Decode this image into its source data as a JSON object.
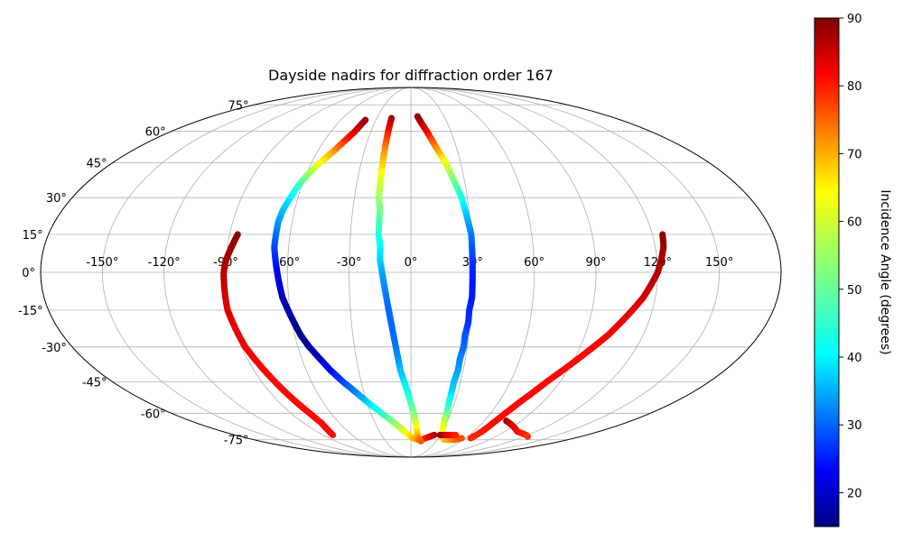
{
  "chart_data": {
    "type": "scatter",
    "projection": "mollweide",
    "title": "Dayside nadirs for diffraction order 167",
    "grid": true,
    "x_ticks": [
      "-150°",
      "-120°",
      "-90°",
      "-60°",
      "-30°",
      "0°",
      "30°",
      "60°",
      "90°",
      "120°",
      "150°"
    ],
    "y_ticks": [
      "75°",
      "60°",
      "45°",
      "30°",
      "15°",
      "0°",
      "-15°",
      "-30°",
      "-45°",
      "-60°",
      "-75°"
    ],
    "colorbar": {
      "label": "Incidence Angle (degrees)",
      "colormap": "jet",
      "range": [
        15,
        90
      ],
      "ticks": [
        "20",
        "30",
        "40",
        "50",
        "60",
        "70",
        "80",
        "90"
      ]
    },
    "series": [
      {
        "points": [
          [
            -86,
            15,
            89
          ],
          [
            -88,
            10,
            88
          ],
          [
            -90,
            5,
            87
          ],
          [
            -91,
            0,
            86
          ],
          [
            -91,
            -5,
            85
          ],
          [
            -91,
            -10,
            84
          ],
          [
            -91,
            -15,
            83
          ],
          [
            -90,
            -20,
            82.5
          ],
          [
            -89,
            -25,
            82
          ],
          [
            -88,
            -30,
            81.5
          ],
          [
            -86,
            -35,
            81
          ],
          [
            -84,
            -40,
            80.5
          ],
          [
            -82,
            -45,
            80
          ],
          [
            -80,
            -50,
            80
          ],
          [
            -78,
            -55,
            80
          ],
          [
            -76,
            -60,
            80
          ],
          [
            -75,
            -65,
            80
          ],
          [
            -76,
            -67,
            80
          ],
          [
            -78,
            -70,
            80
          ],
          [
            -80,
            -72,
            80
          ]
        ]
      },
      {
        "points": [
          [
            -39,
            66,
            89
          ],
          [
            -42,
            60,
            84
          ],
          [
            -46,
            55,
            78
          ],
          [
            -50,
            50,
            70
          ],
          [
            -55,
            45,
            62
          ],
          [
            -59,
            40,
            55
          ],
          [
            -62,
            35,
            48
          ],
          [
            -64,
            30,
            43
          ],
          [
            -66,
            25,
            39
          ],
          [
            -67,
            20,
            36
          ],
          [
            -67,
            15,
            33
          ],
          [
            -67,
            10,
            30
          ],
          [
            -66,
            5,
            27
          ],
          [
            -65,
            0,
            24
          ],
          [
            -64,
            -5,
            22
          ],
          [
            -63,
            -10,
            20
          ],
          [
            -61,
            -15,
            18
          ],
          [
            -59,
            -20,
            17
          ],
          [
            -57,
            -25,
            16
          ],
          [
            -54,
            -30,
            17
          ],
          [
            -50,
            -35,
            20
          ],
          [
            -46,
            -40,
            24
          ],
          [
            -41,
            -45,
            29
          ],
          [
            -35,
            -50,
            34
          ],
          [
            -29,
            -55,
            40
          ],
          [
            -22,
            -60,
            46
          ],
          [
            -14,
            -65,
            53
          ],
          [
            -6,
            -70,
            60
          ],
          [
            2,
            -74,
            66
          ],
          [
            8,
            -75,
            70
          ],
          [
            12,
            -75,
            74
          ],
          [
            16,
            -74,
            78
          ],
          [
            20,
            -73,
            82
          ],
          [
            24,
            -72,
            86
          ]
        ]
      },
      {
        "points": [
          [
            -17,
            67,
            88
          ],
          [
            -17,
            60,
            80
          ],
          [
            -17,
            50,
            70
          ],
          [
            -17,
            45,
            66
          ],
          [
            -17,
            40,
            62
          ],
          [
            -17,
            35,
            58
          ],
          [
            -17,
            30,
            55
          ],
          [
            -16,
            25,
            52
          ],
          [
            -16,
            20,
            49
          ],
          [
            -16,
            15,
            46
          ],
          [
            -15,
            10,
            43
          ],
          [
            -15,
            5,
            40
          ],
          [
            -14,
            0,
            37
          ],
          [
            -13,
            -5,
            35
          ],
          [
            -12,
            -10,
            33
          ],
          [
            -11,
            -15,
            32
          ],
          [
            -10,
            -20,
            32
          ],
          [
            -9,
            -25,
            32
          ],
          [
            -8,
            -30,
            33
          ],
          [
            -7,
            -35,
            35
          ],
          [
            -6,
            -40,
            38
          ],
          [
            -4,
            -45,
            41
          ],
          [
            -2,
            -50,
            44
          ],
          [
            0,
            -55,
            48
          ],
          [
            2,
            -60,
            52
          ],
          [
            4,
            -65,
            58
          ],
          [
            6,
            -70,
            64
          ],
          [
            8,
            -74,
            70
          ],
          [
            12,
            -76,
            74
          ]
        ]
      },
      {
        "points": [
          [
            6,
            68,
            89
          ],
          [
            9,
            64,
            86
          ],
          [
            12,
            60,
            82
          ],
          [
            15,
            55,
            75
          ],
          [
            18,
            50,
            68
          ],
          [
            21,
            45,
            61
          ],
          [
            23,
            40,
            55
          ],
          [
            25,
            35,
            50
          ],
          [
            27,
            30,
            45
          ],
          [
            28,
            25,
            41
          ],
          [
            29,
            20,
            37
          ],
          [
            30,
            15,
            34
          ],
          [
            30,
            10,
            31
          ],
          [
            30,
            5,
            29
          ],
          [
            30,
            0,
            27
          ],
          [
            30,
            -5,
            26
          ],
          [
            30,
            -10,
            26
          ],
          [
            29,
            -15,
            27
          ],
          [
            29,
            -20,
            28
          ],
          [
            28,
            -25,
            30
          ],
          [
            28,
            -30,
            32
          ],
          [
            27,
            -35,
            34
          ],
          [
            27,
            -40,
            36
          ],
          [
            26,
            -45,
            38
          ],
          [
            26,
            -50,
            40
          ],
          [
            26,
            -55,
            45
          ],
          [
            27,
            -60,
            50
          ],
          [
            27,
            -63,
            55
          ],
          [
            29,
            -68,
            60
          ],
          [
            33,
            -73,
            63
          ],
          [
            38,
            -75,
            66
          ],
          [
            44,
            -75,
            69
          ],
          [
            50,
            -75,
            72
          ],
          [
            56,
            -74,
            75
          ]
        ]
      },
      {
        "points": [
          [
            125,
            15,
            89
          ],
          [
            124,
            10,
            88
          ],
          [
            122,
            5,
            87
          ],
          [
            120,
            0,
            86
          ],
          [
            117,
            -5,
            85
          ],
          [
            114,
            -10,
            84
          ],
          [
            110,
            -15,
            83
          ],
          [
            106,
            -20,
            82
          ],
          [
            102,
            -25,
            81
          ],
          [
            97,
            -30,
            80.5
          ],
          [
            92,
            -35,
            80
          ],
          [
            87,
            -40,
            80
          ],
          [
            82,
            -45,
            80
          ],
          [
            78,
            -50,
            80
          ],
          [
            74,
            -55,
            80
          ],
          [
            71,
            -60,
            80
          ],
          [
            69,
            -65,
            80
          ],
          [
            68,
            -70,
            79
          ],
          [
            66,
            -74,
            78
          ]
        ]
      },
      {
        "points": [
          [
            78,
            -64,
            89
          ],
          [
            86,
            -66,
            85
          ],
          [
            94,
            -68,
            82
          ],
          [
            102,
            -70,
            80
          ],
          [
            110,
            -71,
            79
          ],
          [
            118,
            -72,
            78
          ],
          [
            124,
            -73,
            77
          ]
        ]
      },
      {
        "points": [
          [
            30,
            -72,
            89
          ],
          [
            34,
            -72,
            86
          ],
          [
            38,
            -72,
            83
          ],
          [
            42,
            -72,
            80
          ],
          [
            46,
            -72,
            78
          ]
        ]
      }
    ]
  }
}
